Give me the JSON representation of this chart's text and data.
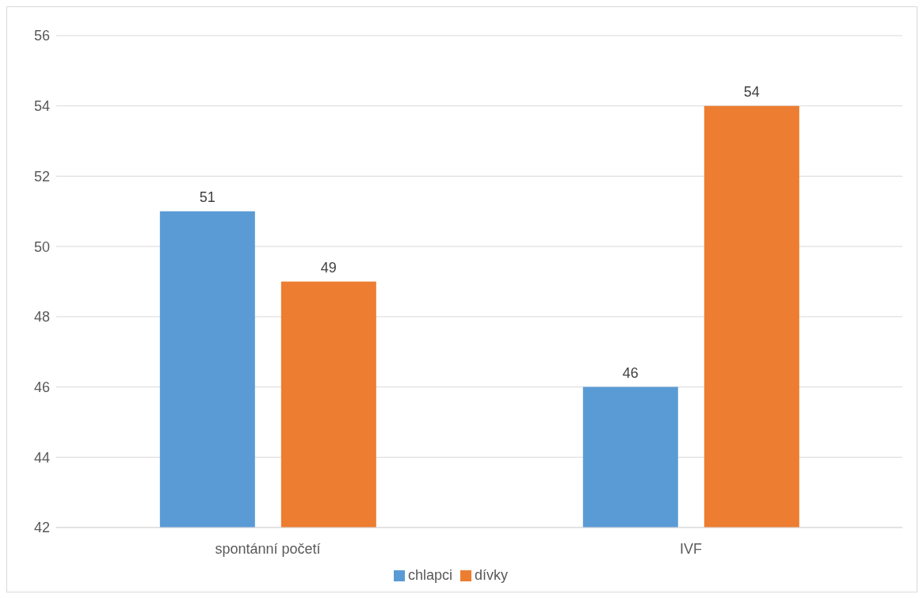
{
  "chart_data": {
    "type": "bar",
    "categories": [
      "spontánní početí",
      "IVF"
    ],
    "series": [
      {
        "name": "chlapci",
        "color": "#5b9bd5",
        "values": [
          51,
          46
        ]
      },
      {
        "name": "dívky",
        "color": "#ed7d31",
        "values": [
          49,
          54
        ]
      }
    ],
    "ylim": [
      42,
      56
    ],
    "yticks": [
      42,
      44,
      46,
      48,
      50,
      52,
      54,
      56
    ],
    "grid": "y",
    "legend": "bottom",
    "data_labels": true
  }
}
